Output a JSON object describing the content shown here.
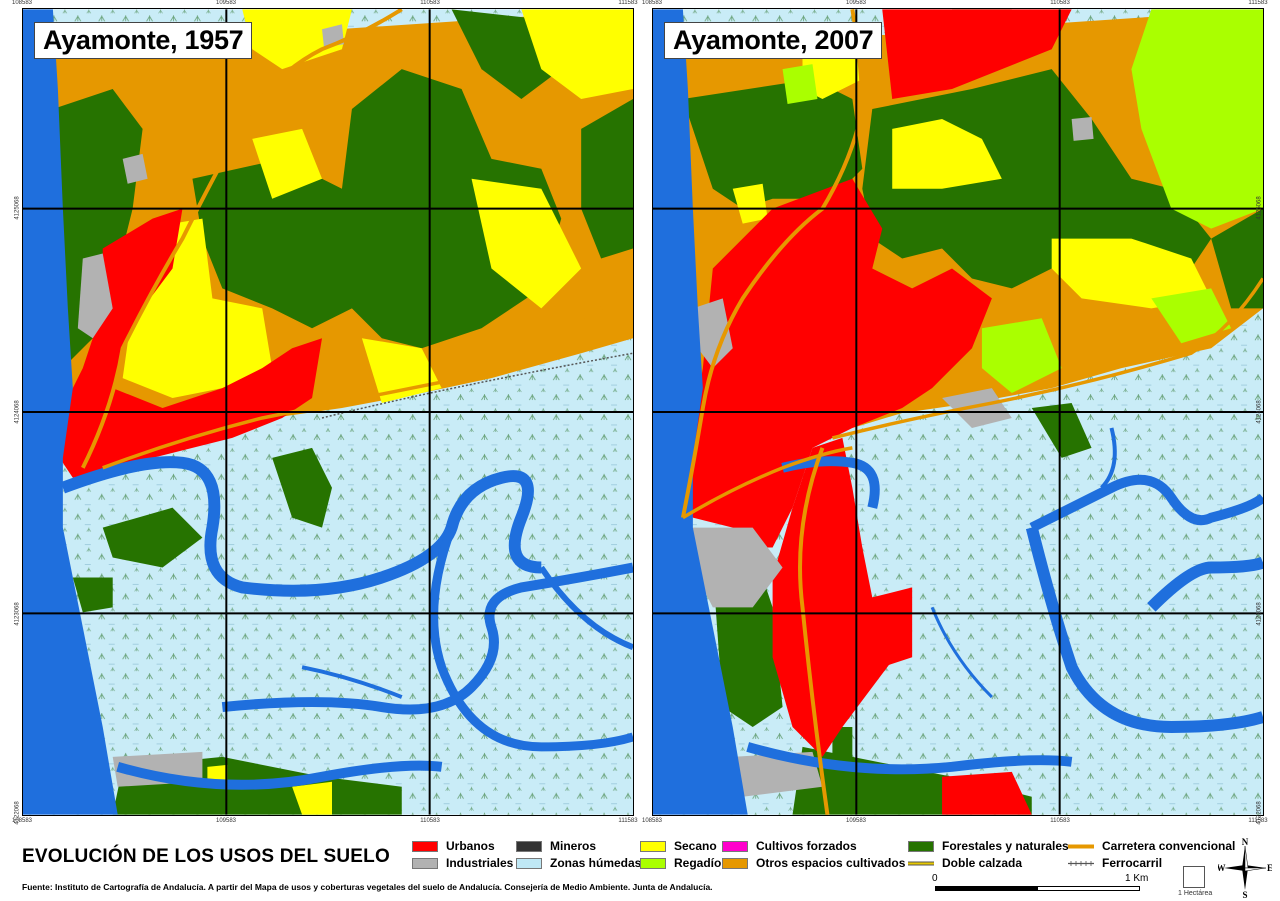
{
  "panels": [
    {
      "title": "Ayamonte, 1957",
      "top_coords": [
        "108583",
        "109583",
        "110583",
        "111583"
      ],
      "bottom_coords": [
        "108583",
        "109583",
        "110583",
        "111583"
      ],
      "side_coords": [
        "4125068",
        "4124068",
        "4123068",
        "4122068"
      ]
    },
    {
      "title": "Ayamonte, 2007",
      "top_coords": [
        "108583",
        "109583",
        "110583",
        "111583"
      ],
      "bottom_coords": [
        "108583",
        "109583",
        "110583",
        "111583"
      ],
      "side_coords": [
        "4125068",
        "4124068",
        "4123068",
        "4122068"
      ]
    }
  ],
  "title": "EVOLUCIÓN DE LOS USOS DEL SUELO",
  "legend": {
    "urbanos": {
      "label": "Urbanos",
      "color": "#ff0000"
    },
    "industriales": {
      "label": "Industriales",
      "color": "#b2b2b2"
    },
    "mineros": {
      "label": "Mineros",
      "color": "#333333"
    },
    "humedas": {
      "label": "Zonas húmedas",
      "color": "#bfe8f5"
    },
    "secano": {
      "label": "Secano",
      "color": "#ffff00"
    },
    "regadio": {
      "label": "Regadío",
      "color": "#aaff00"
    },
    "forzados": {
      "label": "Cultivos forzados",
      "color": "#ff00cc"
    },
    "otros": {
      "label": "Otros espacios cultivados",
      "color": "#e69800"
    },
    "forestales": {
      "label": "Forestales y naturales",
      "color": "#267300"
    },
    "doble": {
      "label": "Doble calzada",
      "color": "#e6c800"
    },
    "carretera": {
      "label": "Carretera convencional",
      "color": "#e69800"
    },
    "ferrocarril": {
      "label": "Ferrocarril",
      "color": "#555555"
    }
  },
  "scale": {
    "zero": "0",
    "one": "1 Km",
    "hectare": "1 Hectárea"
  },
  "compass": {
    "n": "N",
    "s": "S",
    "e": "E",
    "w": "W"
  },
  "source": "Fuente: Instituto de Cartografía de Andalucía. A partir del Mapa de usos y coberturas vegetales del suelo de Andalucía. Consejería de Medio Ambiente. Junta de Andalucía.",
  "colors": {
    "water": "#1f6fdd",
    "wetland": "#c7eaf5",
    "grid": "#000000"
  }
}
